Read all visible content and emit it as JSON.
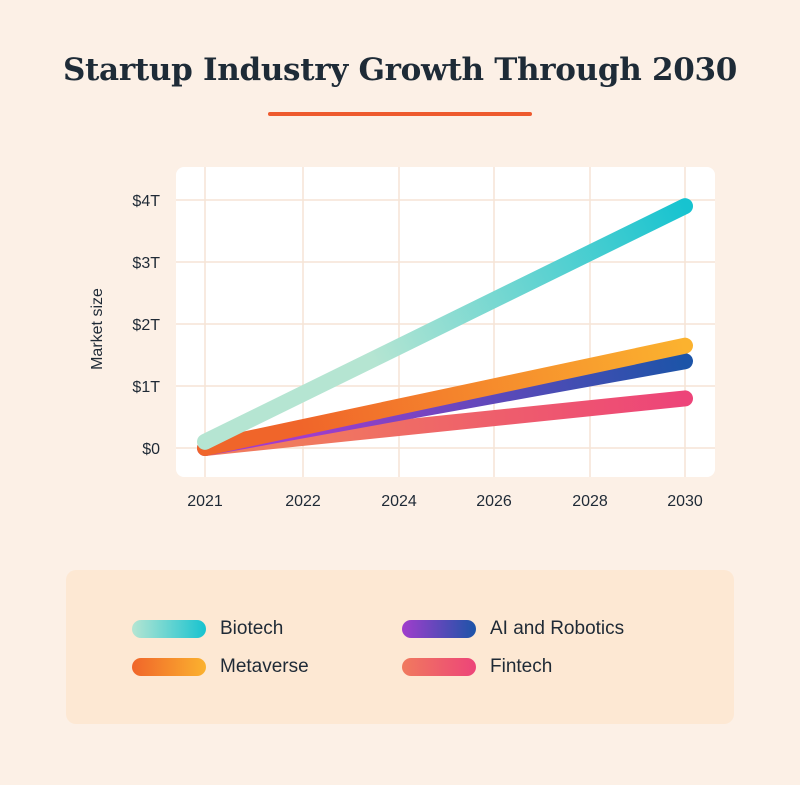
{
  "title": "Startup Industry Growth Through 2030",
  "colors": {
    "accent_rule": "#ee5a2e",
    "background": "#fcf0e6",
    "plot_background": "#ffffff",
    "grid": "#f6e4d5",
    "legend_background": "#fde8d3"
  },
  "chart_data": {
    "type": "line",
    "title": "Startup Industry Growth Through 2030",
    "xlabel": "",
    "ylabel": "Market size",
    "x_tick_labels": [
      "2021",
      "2022",
      "2024",
      "2026",
      "2028",
      "2030"
    ],
    "y_tick_labels": [
      "$0",
      "$1T",
      "$2T",
      "$3T",
      "$4T"
    ],
    "y_ticks": [
      0,
      1,
      2,
      3,
      4
    ],
    "ylim": [
      -0.1,
      4.5
    ],
    "y_unit": "trillion USD",
    "grid": true,
    "legend_position": "bottom",
    "series": [
      {
        "name": "Biotech",
        "x": [
          "2021",
          "2030"
        ],
        "y": [
          0.1,
          3.9
        ],
        "color_start": "#b5e5d2",
        "color_end": "#17c3d0"
      },
      {
        "name": "Metaverse",
        "x": [
          "2021",
          "2030"
        ],
        "y": [
          0.0,
          1.65
        ],
        "color_start": "#f0652a",
        "color_end": "#fbb22f"
      },
      {
        "name": "AI and Robotics",
        "x": [
          "2021",
          "2030"
        ],
        "y": [
          0.0,
          1.4
        ],
        "color_start": "#a13dcc",
        "color_end": "#1c54a8"
      },
      {
        "name": "Fintech",
        "x": [
          "2021",
          "2030"
        ],
        "y": [
          0.0,
          0.8
        ],
        "color_start": "#f07a5e",
        "color_end": "#ed4479"
      }
    ]
  },
  "legend": {
    "items": [
      {
        "label": "Biotech",
        "gradient": [
          "#b5e5d2",
          "#17c3d0"
        ]
      },
      {
        "label": "AI and Robotics",
        "gradient": [
          "#a13dcc",
          "#1c54a8"
        ]
      },
      {
        "label": "Metaverse",
        "gradient": [
          "#f0652a",
          "#fbb22f"
        ]
      },
      {
        "label": "Fintech",
        "gradient": [
          "#f07a5e",
          "#ed4479"
        ]
      }
    ]
  }
}
